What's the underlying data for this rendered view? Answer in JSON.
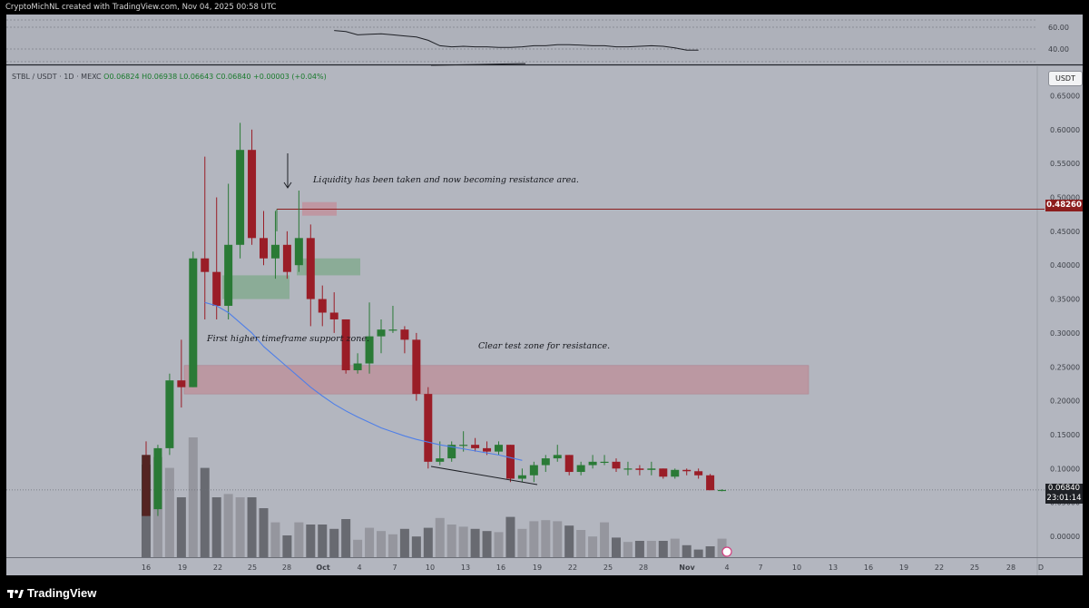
{
  "header": {
    "credit": "CryptoMichNL created with TradingView.com, Nov 04, 2025 00:58 UTC"
  },
  "symbol": {
    "prefix": "STBL / USDT · 1D · MEXC",
    "ohlc": "O0.06824 H0.06938 L0.06643 C0.06840 +0.00003 (+0.04%)"
  },
  "currency": "USDT",
  "annotations": {
    "liquidity": "Liquidity has been taken and now becoming resistance area.",
    "support": "First higher timeframe support zone.",
    "resistance": "Clear test zone for resistance."
  },
  "price_labels": {
    "level": "0.48260",
    "last": "0.06840",
    "countdown": "23:01:14"
  },
  "brand": {
    "name": "TradingView"
  },
  "colors": {
    "panel": "#b3b6bf",
    "up": "#2a7a36",
    "down": "#9a1d27",
    "resistance_line": "#8c1d1d",
    "ma": "#4f7fe8"
  },
  "chart_data": [
    {
      "type": "candlestick",
      "title": "STBL / USDT · 1D · MEXC",
      "y_axis": {
        "ticks": [
          "0.65000",
          "0.60000",
          "0.55000",
          "0.50000",
          "0.45000",
          "0.40000",
          "0.35000",
          "0.30000",
          "0.25000",
          "0.20000",
          "0.15000",
          "0.10000",
          "0.05000",
          "0.00000"
        ],
        "ylim": [
          0,
          0.65
        ]
      },
      "x_axis": {
        "ticks": [
          "16",
          "19",
          "22",
          "25",
          "28",
          "Oct",
          "4",
          "7",
          "10",
          "13",
          "16",
          "19",
          "22",
          "25",
          "28",
          "Nov",
          "4",
          "7",
          "10",
          "13",
          "16",
          "19",
          "22",
          "25",
          "28",
          "D"
        ]
      },
      "candles": [
        {
          "date": "Sep 16",
          "o": 0.12,
          "h": 0.14,
          "l": 0.03,
          "c": 0.03
        },
        {
          "date": "Sep 17",
          "o": 0.04,
          "h": 0.135,
          "l": 0.03,
          "c": 0.13
        },
        {
          "date": "Sep 18",
          "o": 0.13,
          "h": 0.24,
          "l": 0.12,
          "c": 0.23
        },
        {
          "date": "Sep 19",
          "o": 0.23,
          "h": 0.29,
          "l": 0.19,
          "c": 0.22
        },
        {
          "date": "Sep 20",
          "o": 0.22,
          "h": 0.42,
          "l": 0.22,
          "c": 0.41
        },
        {
          "date": "Sep 21",
          "o": 0.41,
          "h": 0.56,
          "l": 0.32,
          "c": 0.39
        },
        {
          "date": "Sep 22",
          "o": 0.39,
          "h": 0.5,
          "l": 0.32,
          "c": 0.34
        },
        {
          "date": "Sep 23",
          "o": 0.34,
          "h": 0.52,
          "l": 0.32,
          "c": 0.43
        },
        {
          "date": "Sep 24",
          "o": 0.43,
          "h": 0.61,
          "l": 0.41,
          "c": 0.57
        },
        {
          "date": "Sep 25",
          "o": 0.57,
          "h": 0.6,
          "l": 0.43,
          "c": 0.44
        },
        {
          "date": "Sep 26",
          "o": 0.44,
          "h": 0.48,
          "l": 0.4,
          "c": 0.41
        },
        {
          "date": "Sep 27",
          "o": 0.41,
          "h": 0.48,
          "l": 0.38,
          "c": 0.43
        },
        {
          "date": "Sep 28",
          "o": 0.43,
          "h": 0.45,
          "l": 0.38,
          "c": 0.39
        },
        {
          "date": "Sep 29",
          "o": 0.4,
          "h": 0.51,
          "l": 0.39,
          "c": 0.44
        },
        {
          "date": "Sep 30",
          "o": 0.44,
          "h": 0.46,
          "l": 0.31,
          "c": 0.35
        },
        {
          "date": "Oct 1",
          "o": 0.35,
          "h": 0.37,
          "l": 0.31,
          "c": 0.33
        },
        {
          "date": "Oct 2",
          "o": 0.33,
          "h": 0.36,
          "l": 0.3,
          "c": 0.32
        },
        {
          "date": "Oct 3",
          "o": 0.32,
          "h": 0.32,
          "l": 0.24,
          "c": 0.245
        },
        {
          "date": "Oct 4",
          "o": 0.245,
          "h": 0.27,
          "l": 0.24,
          "c": 0.255
        },
        {
          "date": "Oct 5",
          "o": 0.255,
          "h": 0.345,
          "l": 0.24,
          "c": 0.295
        },
        {
          "date": "Oct 6",
          "o": 0.295,
          "h": 0.32,
          "l": 0.27,
          "c": 0.305
        },
        {
          "date": "Oct 7",
          "o": 0.305,
          "h": 0.34,
          "l": 0.3,
          "c": 0.305
        },
        {
          "date": "Oct 8",
          "o": 0.305,
          "h": 0.31,
          "l": 0.27,
          "c": 0.29
        },
        {
          "date": "Oct 9",
          "o": 0.29,
          "h": 0.3,
          "l": 0.2,
          "c": 0.21
        },
        {
          "date": "Oct 10",
          "o": 0.21,
          "h": 0.22,
          "l": 0.1,
          "c": 0.11
        },
        {
          "date": "Oct 11",
          "o": 0.11,
          "h": 0.14,
          "l": 0.105,
          "c": 0.115
        },
        {
          "date": "Oct 12",
          "o": 0.115,
          "h": 0.14,
          "l": 0.11,
          "c": 0.135
        },
        {
          "date": "Oct 13",
          "o": 0.135,
          "h": 0.155,
          "l": 0.125,
          "c": 0.135
        },
        {
          "date": "Oct 14",
          "o": 0.135,
          "h": 0.145,
          "l": 0.125,
          "c": 0.13
        },
        {
          "date": "Oct 15",
          "o": 0.13,
          "h": 0.14,
          "l": 0.12,
          "c": 0.125
        },
        {
          "date": "Oct 16",
          "o": 0.125,
          "h": 0.14,
          "l": 0.12,
          "c": 0.135
        },
        {
          "date": "Oct 17",
          "o": 0.135,
          "h": 0.135,
          "l": 0.08,
          "c": 0.085
        },
        {
          "date": "Oct 18",
          "o": 0.085,
          "h": 0.1,
          "l": 0.08,
          "c": 0.09
        },
        {
          "date": "Oct 19",
          "o": 0.09,
          "h": 0.11,
          "l": 0.08,
          "c": 0.105
        },
        {
          "date": "Oct 20",
          "o": 0.105,
          "h": 0.12,
          "l": 0.095,
          "c": 0.115
        },
        {
          "date": "Oct 21",
          "o": 0.115,
          "h": 0.135,
          "l": 0.11,
          "c": 0.12
        },
        {
          "date": "Oct 22",
          "o": 0.12,
          "h": 0.12,
          "l": 0.09,
          "c": 0.095
        },
        {
          "date": "Oct 23",
          "o": 0.095,
          "h": 0.11,
          "l": 0.09,
          "c": 0.105
        },
        {
          "date": "Oct 24",
          "o": 0.105,
          "h": 0.12,
          "l": 0.1,
          "c": 0.11
        },
        {
          "date": "Oct 25",
          "o": 0.11,
          "h": 0.12,
          "l": 0.105,
          "c": 0.11
        },
        {
          "date": "Oct 26",
          "o": 0.11,
          "h": 0.115,
          "l": 0.095,
          "c": 0.1
        },
        {
          "date": "Oct 27",
          "o": 0.1,
          "h": 0.11,
          "l": 0.09,
          "c": 0.1
        },
        {
          "date": "Oct 28",
          "o": 0.1,
          "h": 0.105,
          "l": 0.09,
          "c": 0.098
        },
        {
          "date": "Oct 29",
          "o": 0.098,
          "h": 0.11,
          "l": 0.09,
          "c": 0.1
        },
        {
          "date": "Oct 30",
          "o": 0.1,
          "h": 0.1,
          "l": 0.085,
          "c": 0.088
        },
        {
          "date": "Oct 31",
          "o": 0.088,
          "h": 0.1,
          "l": 0.085,
          "c": 0.098
        },
        {
          "date": "Nov 1",
          "o": 0.098,
          "h": 0.1,
          "l": 0.09,
          "c": 0.096
        },
        {
          "date": "Nov 2",
          "o": 0.096,
          "h": 0.1,
          "l": 0.085,
          "c": 0.09
        },
        {
          "date": "Nov 3",
          "o": 0.09,
          "h": 0.092,
          "l": 0.068,
          "c": 0.068
        },
        {
          "date": "Nov 4",
          "o": 0.06824,
          "h": 0.06938,
          "l": 0.06643,
          "c": 0.0684
        }
      ],
      "volume": [
        0.85,
        0.92,
        0.82,
        0.55,
        1.1,
        0.82,
        0.55,
        0.58,
        0.55,
        0.55,
        0.45,
        0.32,
        0.2,
        0.32,
        0.3,
        0.3,
        0.26,
        0.35,
        0.16,
        0.27,
        0.24,
        0.21,
        0.26,
        0.19,
        0.27,
        0.36,
        0.3,
        0.28,
        0.26,
        0.24,
        0.23,
        0.37,
        0.26,
        0.33,
        0.34,
        0.33,
        0.29,
        0.25,
        0.19,
        0.32,
        0.18,
        0.14,
        0.15,
        0.15,
        0.15,
        0.17,
        0.11,
        0.07,
        0.1,
        0.17
      ],
      "moving_average": [
        [
          5,
          0.345
        ],
        [
          6,
          0.34
        ],
        [
          7,
          0.33
        ],
        [
          8,
          0.315
        ],
        [
          9,
          0.3
        ],
        [
          10,
          0.28
        ],
        [
          11,
          0.265
        ],
        [
          12,
          0.25
        ],
        [
          13,
          0.235
        ],
        [
          14,
          0.22
        ],
        [
          15,
          0.207
        ],
        [
          16,
          0.195
        ],
        [
          17,
          0.185
        ],
        [
          18,
          0.176
        ],
        [
          19,
          0.168
        ],
        [
          20,
          0.16
        ],
        [
          21,
          0.154
        ],
        [
          22,
          0.148
        ],
        [
          23,
          0.143
        ],
        [
          24,
          0.139
        ],
        [
          25,
          0.135
        ],
        [
          26,
          0.132
        ],
        [
          27,
          0.129
        ],
        [
          28,
          0.126
        ],
        [
          29,
          0.123
        ],
        [
          30,
          0.12
        ],
        [
          31,
          0.116
        ],
        [
          32,
          0.112
        ]
      ],
      "zones": [
        {
          "kind": "support",
          "ymin": 0.35,
          "ymax": 0.385,
          "color": "#7ea889"
        },
        {
          "kind": "support",
          "ymin": 0.385,
          "ymax": 0.41,
          "color": "#7ea889"
        },
        {
          "kind": "resistance",
          "ymin": 0.21,
          "ymax": 0.252,
          "color": "#bd8d98"
        },
        {
          "kind": "liquidity",
          "ymin": 0.473,
          "ymax": 0.493,
          "color": "#c38c98"
        }
      ],
      "resistance_level": 0.4826,
      "last_price": 0.0684
    },
    {
      "type": "line",
      "y_axis": {
        "ticks": [
          "60.00",
          "40.00"
        ]
      },
      "values": [
        [
          16,
          57
        ],
        [
          17,
          56
        ],
        [
          18,
          53
        ],
        [
          19,
          53.5
        ],
        [
          20,
          54
        ],
        [
          21,
          53
        ],
        [
          22,
          52
        ],
        [
          23,
          51
        ],
        [
          24,
          48
        ],
        [
          25,
          43
        ],
        [
          26,
          42
        ],
        [
          27,
          42.5
        ],
        [
          28,
          42
        ],
        [
          29,
          42
        ],
        [
          30,
          41.5
        ],
        [
          31,
          41.5
        ],
        [
          32,
          42
        ],
        [
          33,
          43
        ],
        [
          34,
          43
        ],
        [
          35,
          44
        ],
        [
          36,
          44
        ],
        [
          37,
          43.5
        ],
        [
          38,
          43
        ],
        [
          39,
          43
        ],
        [
          40,
          42
        ],
        [
          41,
          42
        ],
        [
          42,
          42.5
        ],
        [
          43,
          43
        ],
        [
          44,
          42.5
        ],
        [
          45,
          41
        ],
        [
          46,
          39
        ],
        [
          47,
          39
        ]
      ]
    }
  ]
}
